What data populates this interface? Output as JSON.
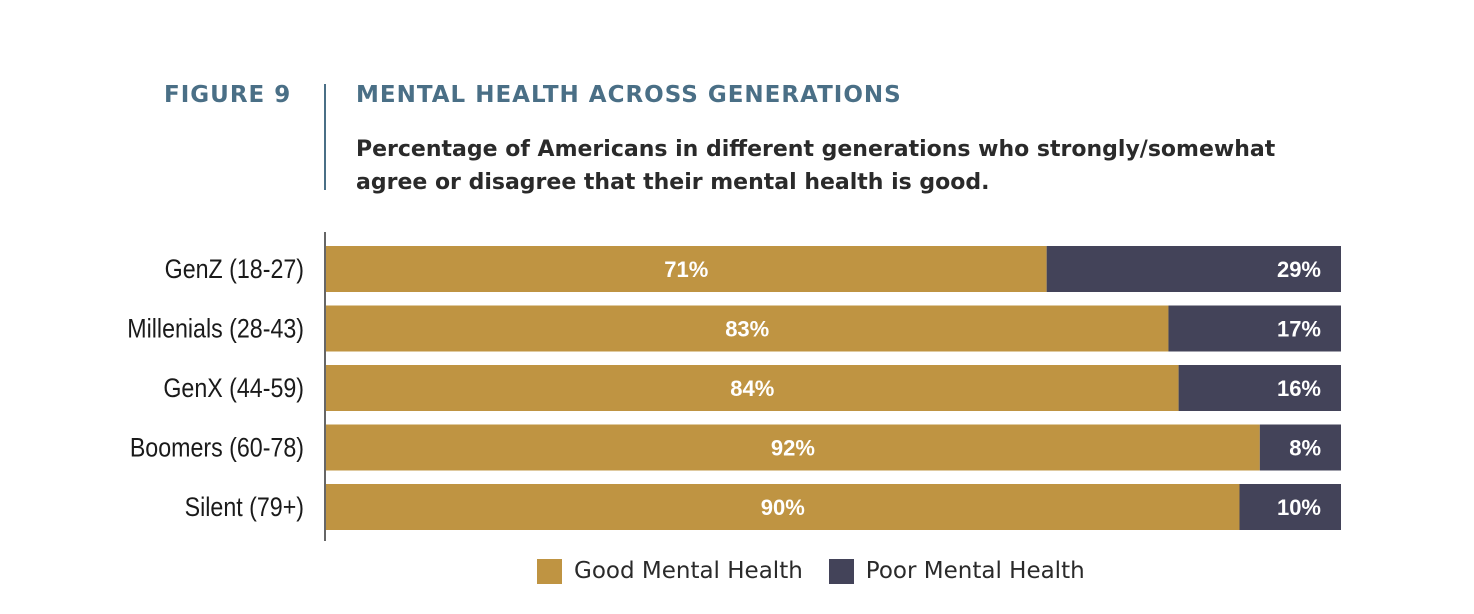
{
  "header": {
    "figure_label": "FIGURE 9",
    "title": "MENTAL HEALTH ACROSS GENERATIONS",
    "subtitle": "Percentage of Americans in different generations who strongly/somewhat agree or disagree that their mental health is good."
  },
  "colors": {
    "good": "#bf9442",
    "poor": "#434359",
    "accent": "#4a6f86"
  },
  "chart_data": {
    "type": "bar",
    "orientation": "horizontal",
    "stacked": true,
    "title": "MENTAL HEALTH ACROSS GENERATIONS",
    "subtitle": "Percentage of Americans in different generations who strongly/somewhat agree or disagree that their mental health is good.",
    "categories": [
      "GenZ (18-27)",
      "Millenials (28-43)",
      "GenX (44-59)",
      "Boomers (60-78)",
      "Silent (79+)"
    ],
    "series": [
      {
        "name": "Good Mental Health",
        "values": [
          71,
          83,
          84,
          92,
          90
        ],
        "labels": [
          "71%",
          "83%",
          "84%",
          "92%",
          "90%"
        ]
      },
      {
        "name": "Poor Mental Health",
        "values": [
          29,
          17,
          16,
          8,
          10
        ],
        "labels": [
          "29%",
          "17%",
          "16%",
          "8%",
          "10%"
        ]
      }
    ],
    "xlim": [
      0,
      100
    ],
    "grid": false,
    "legend": "bottom"
  }
}
